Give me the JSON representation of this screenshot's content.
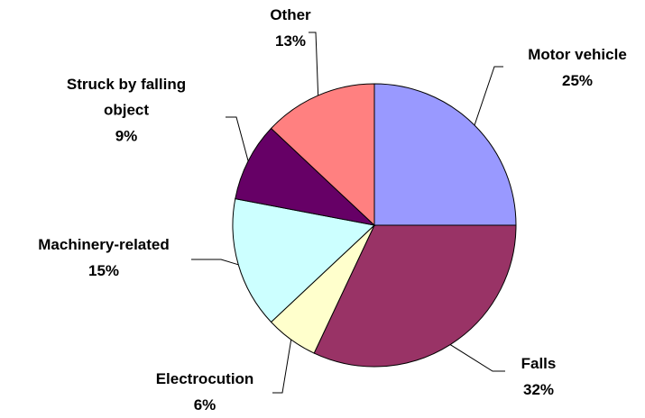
{
  "chart_data": {
    "type": "pie",
    "categories": [
      "Motor vehicle",
      "Falls",
      "Electrocution",
      "Machinery-related",
      "Struck by falling object",
      "Other"
    ],
    "values": [
      25,
      32,
      6,
      15,
      9,
      13
    ],
    "value_labels": [
      "25%",
      "32%",
      "6%",
      "15%",
      "9%",
      "13%"
    ],
    "colors": [
      "#9999ff",
      "#993366",
      "#ffffcc",
      "#ccffff",
      "#660066",
      "#ff8080"
    ]
  }
}
